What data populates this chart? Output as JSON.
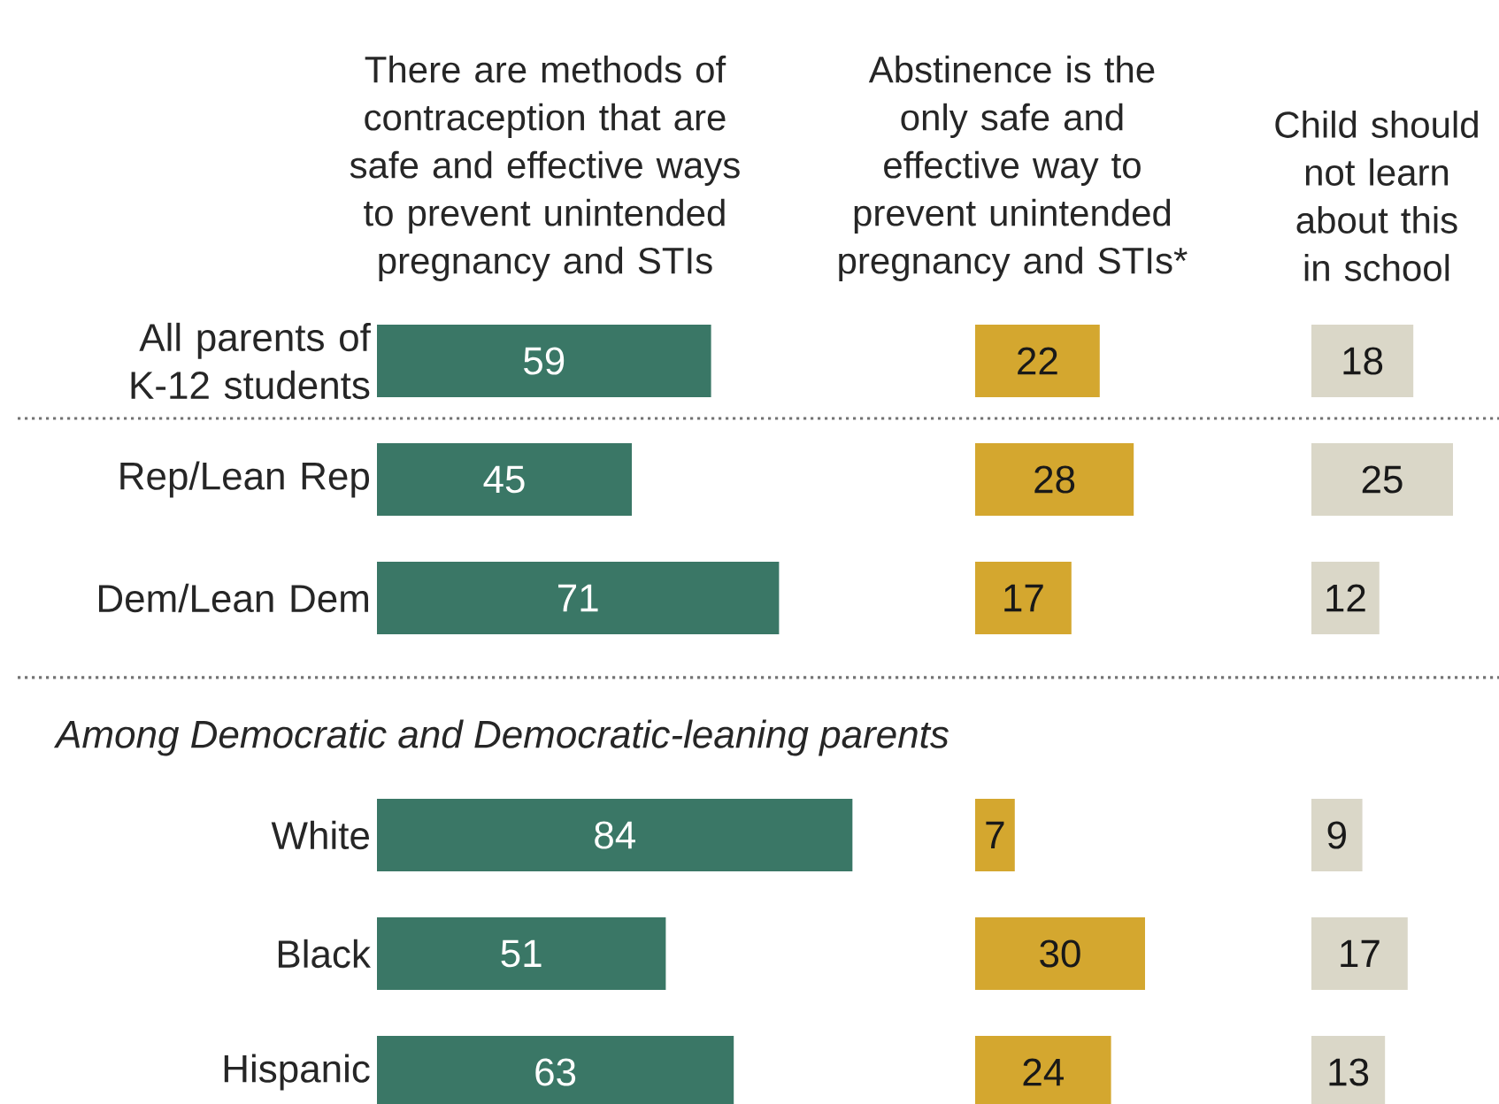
{
  "chart_data": [
    {
      "type": "bar",
      "orientation": "horizontal",
      "title": "There are methods of contraception that are safe and effective ways to prevent unintended pregnancy and STIs",
      "categories": [
        "All parents of K-12 students",
        "Rep/Lean Rep",
        "Dem/Lean Dem",
        "White",
        "Black",
        "Hispanic"
      ],
      "values": [
        59,
        45,
        71,
        84,
        51,
        63
      ],
      "color": "#3a7766",
      "data_labels": true,
      "tick_labels": "y",
      "annotations": [
        "Among Democratic and Democratic-leaning parents"
      ]
    },
    {
      "type": "bar",
      "orientation": "horizontal",
      "title": "Abstinence is the only safe and effective way to prevent unintended pregnancy and STIs*",
      "categories": [
        null,
        null,
        null,
        null,
        null,
        null
      ],
      "values": [
        22,
        28,
        17,
        7,
        30,
        24
      ],
      "color": "#d4a72f",
      "data_labels": true,
      "tick_labels": false
    },
    {
      "type": "bar",
      "orientation": "horizontal",
      "title": "Child should not learn about this in school",
      "categories": [
        null,
        null,
        null,
        null,
        null,
        null
      ],
      "values": [
        18,
        25,
        12,
        9,
        17,
        13
      ],
      "color": "#dad7c8",
      "data_labels": true,
      "tick_labels": false
    }
  ]
}
